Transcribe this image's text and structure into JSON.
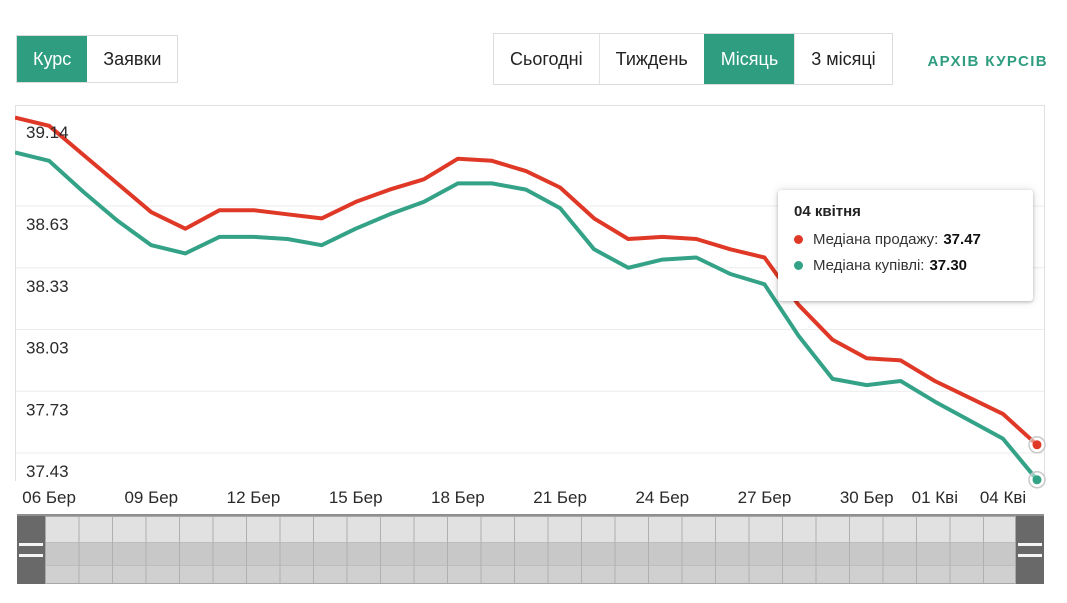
{
  "colors": {
    "accent": "#2e9d80",
    "sell_line": "#df3826",
    "buy_line": "#33a287",
    "grid": "#ececec",
    "border": "#e0e0e0",
    "axis_text": "#2a2a2a"
  },
  "toolbar": {
    "view_toggle": [
      {
        "label": "Курс",
        "active": true
      },
      {
        "label": "Заявки",
        "active": false
      }
    ],
    "range_tabs": [
      {
        "label": "Сьогодні",
        "active": false
      },
      {
        "label": "Тиждень",
        "active": false
      },
      {
        "label": "Місяць",
        "active": true
      },
      {
        "label": "3 місяці",
        "active": false
      }
    ],
    "archive_link": "АРХІВ КУРСІВ"
  },
  "tooltip": {
    "title": "04 квітня",
    "rows": [
      {
        "label": "Медіана продажу:",
        "value": "37.47",
        "color": "#df3826"
      },
      {
        "label": "Медіана купівлі:",
        "value": "37.30",
        "color": "#33a287"
      }
    ]
  },
  "chart_data": {
    "type": "line",
    "x": [
      "05 Бер",
      "06 Бер",
      "07 Бер",
      "08 Бер",
      "09 Бер",
      "10 Бер",
      "11 Бер",
      "12 Бер",
      "13 Бер",
      "14 Бер",
      "15 Бер",
      "16 Бер",
      "17 Бер",
      "18 Бер",
      "19 Бер",
      "20 Бер",
      "21 Бер",
      "22 Бер",
      "23 Бер",
      "24 Бер",
      "25 Бер",
      "26 Бер",
      "27 Бер",
      "28 Бер",
      "29 Бер",
      "30 Бер",
      "31 Бер",
      "01 Кві",
      "02 Кві",
      "03 Кві",
      "04 Кві"
    ],
    "series": [
      {
        "name": "Медіана продажу",
        "color": "#df3826",
        "values": [
          39.06,
          39.02,
          38.88,
          38.74,
          38.6,
          38.52,
          38.61,
          38.61,
          38.59,
          38.57,
          38.65,
          38.71,
          38.76,
          38.86,
          38.85,
          38.8,
          38.72,
          38.57,
          38.47,
          38.48,
          38.47,
          38.42,
          38.38,
          38.15,
          37.98,
          37.89,
          37.88,
          37.78,
          37.7,
          37.62,
          37.47
        ]
      },
      {
        "name": "Медіана купівлі",
        "color": "#33a287",
        "values": [
          38.89,
          38.85,
          38.7,
          38.56,
          38.44,
          38.4,
          38.48,
          38.48,
          38.47,
          38.44,
          38.52,
          38.59,
          38.65,
          38.74,
          38.74,
          38.71,
          38.62,
          38.42,
          38.33,
          38.37,
          38.38,
          38.3,
          38.25,
          38.0,
          37.79,
          37.76,
          37.78,
          37.68,
          37.59,
          37.5,
          37.3
        ]
      }
    ],
    "y_ticks": [
      39.14,
      38.63,
      38.33,
      38.03,
      37.73,
      37.43
    ],
    "x_tick_indices": [
      1,
      4,
      7,
      10,
      13,
      16,
      19,
      22,
      25,
      27,
      30
    ],
    "ylim": [
      37.294,
      39.121
    ],
    "grid": "horizontal-only",
    "legend_position": "tooltip",
    "highlight": {
      "index": 30,
      "date_label": "04 квітня",
      "sell": 37.47,
      "buy": 37.3
    }
  }
}
